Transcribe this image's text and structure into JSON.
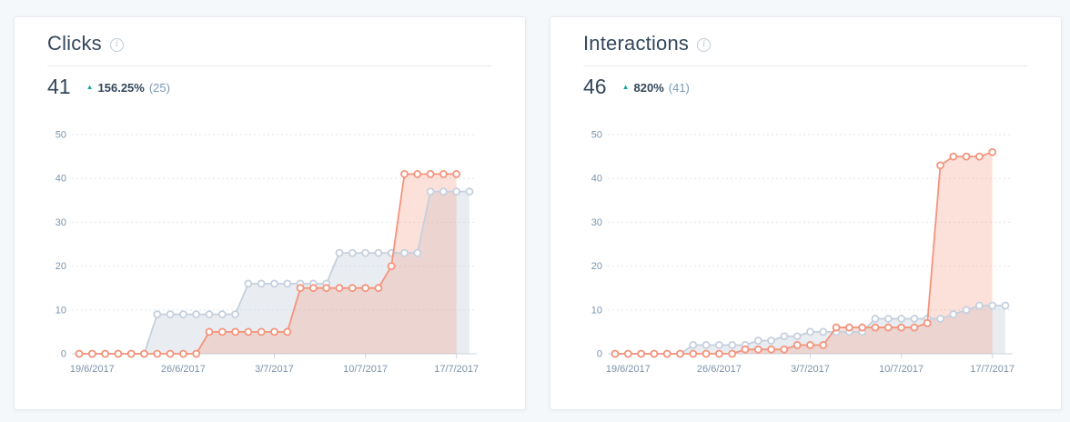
{
  "page": {
    "background": "#f5f8fa"
  },
  "icons": {
    "triangle_up": "▲",
    "info": "i"
  },
  "colors": {
    "title": "#33475b",
    "value": "#33475b",
    "delta_up": "#1ba79d",
    "previous_text": "#7c98b6",
    "axis_text": "#7d93ab",
    "gridline": "#dfe5ec",
    "axis_line": "#ccd6e0",
    "card_border": "#e5eaf0",
    "card_bg": "#ffffff"
  },
  "chart_data": [
    {
      "type": "area",
      "title": "Clicks",
      "current_total": "41",
      "change_percent": "156.25%",
      "previous_total_display": "(25)",
      "legend_position": "none",
      "grid": "dashed-horizontal",
      "y_ticks": [
        0,
        10,
        20,
        30,
        40,
        50
      ],
      "ylim": [
        0,
        50
      ],
      "x_tick_labels": [
        "19/6/2017",
        "26/6/2017",
        "3/7/2017",
        "10/7/2017",
        "17/7/2017"
      ],
      "x_tick_indices": [
        1,
        8,
        15,
        22,
        29
      ],
      "dates": [
        "18/6/2017",
        "19/6/2017",
        "20/6/2017",
        "21/6/2017",
        "22/6/2017",
        "23/6/2017",
        "24/6/2017",
        "25/6/2017",
        "26/6/2017",
        "27/6/2017",
        "28/6/2017",
        "29/6/2017",
        "30/6/2017",
        "1/7/2017",
        "2/7/2017",
        "3/7/2017",
        "4/7/2017",
        "5/7/2017",
        "6/7/2017",
        "7/7/2017",
        "8/7/2017",
        "9/7/2017",
        "10/7/2017",
        "11/7/2017",
        "12/7/2017",
        "13/7/2017",
        "14/7/2017",
        "15/7/2017",
        "16/7/2017",
        "17/7/2017",
        "18/7/2017"
      ],
      "series": [
        {
          "name": "previous-period",
          "line_color": "#c5d0de",
          "fill_color": "rgba(197,208,222,0.38)",
          "values": [
            0,
            0,
            0,
            0,
            0,
            0,
            9,
            9,
            9,
            9,
            9,
            9,
            9,
            16,
            16,
            16,
            16,
            16,
            16,
            16,
            23,
            23,
            23,
            23,
            23,
            23,
            23,
            37,
            37,
            37,
            37
          ]
        },
        {
          "name": "current-period",
          "line_color": "#f4947c",
          "fill_color": "rgba(244,148,124,0.28)",
          "values": [
            0,
            0,
            0,
            0,
            0,
            0,
            0,
            0,
            0,
            0,
            5,
            5,
            5,
            5,
            5,
            5,
            5,
            15,
            15,
            15,
            15,
            15,
            15,
            15,
            20,
            41,
            41,
            41,
            41,
            41,
            null
          ]
        }
      ]
    },
    {
      "type": "area",
      "title": "Interactions",
      "current_total": "46",
      "change_percent": "820%",
      "previous_total_display": "(41)",
      "legend_position": "none",
      "grid": "dashed-horizontal",
      "y_ticks": [
        0,
        10,
        20,
        30,
        40,
        50
      ],
      "ylim": [
        0,
        50
      ],
      "x_tick_labels": [
        "19/6/2017",
        "26/6/2017",
        "3/7/2017",
        "10/7/2017",
        "17/7/2017"
      ],
      "x_tick_indices": [
        1,
        8,
        15,
        22,
        29
      ],
      "dates": [
        "18/6/2017",
        "19/6/2017",
        "20/6/2017",
        "21/6/2017",
        "22/6/2017",
        "23/6/2017",
        "24/6/2017",
        "25/6/2017",
        "26/6/2017",
        "27/6/2017",
        "28/6/2017",
        "29/6/2017",
        "30/6/2017",
        "1/7/2017",
        "2/7/2017",
        "3/7/2017",
        "4/7/2017",
        "5/7/2017",
        "6/7/2017",
        "7/7/2017",
        "8/7/2017",
        "9/7/2017",
        "10/7/2017",
        "11/7/2017",
        "12/7/2017",
        "13/7/2017",
        "14/7/2017",
        "15/7/2017",
        "16/7/2017",
        "17/7/2017",
        "18/7/2017"
      ],
      "series": [
        {
          "name": "previous-period",
          "line_color": "#c5d0de",
          "fill_color": "rgba(197,208,222,0.38)",
          "values": [
            0,
            0,
            0,
            0,
            0,
            0,
            2,
            2,
            2,
            2,
            2,
            3,
            3,
            4,
            4,
            5,
            5,
            5,
            5,
            5,
            8,
            8,
            8,
            8,
            8,
            8,
            9,
            10,
            11,
            11,
            11
          ]
        },
        {
          "name": "current-period",
          "line_color": "#f4947c",
          "fill_color": "rgba(244,148,124,0.28)",
          "values": [
            0,
            0,
            0,
            0,
            0,
            0,
            0,
            0,
            0,
            0,
            1,
            1,
            1,
            1,
            2,
            2,
            2,
            6,
            6,
            6,
            6,
            6,
            6,
            6,
            7,
            43,
            45,
            45,
            45,
            46,
            null
          ]
        }
      ]
    }
  ]
}
